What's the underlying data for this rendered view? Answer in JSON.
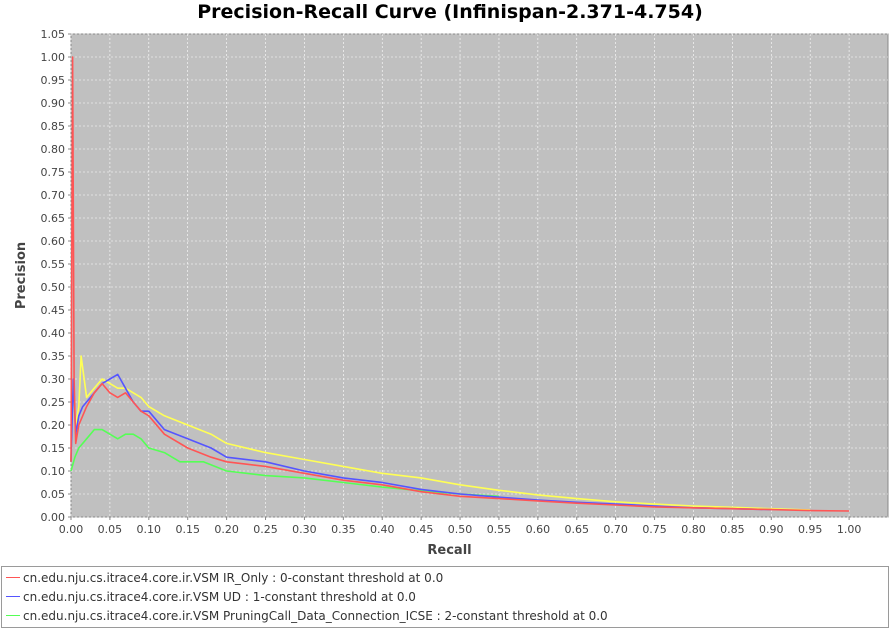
{
  "chart_data": {
    "type": "line",
    "title": "Precision-Recall Curve (Infinispan-2.371-4.754)",
    "xlabel": "Recall",
    "ylabel": "Precision",
    "xlim": [
      0,
      1.05
    ],
    "ylim": [
      0,
      1.05
    ],
    "x_ticks": [
      "0.00",
      "0.05",
      "0.10",
      "0.15",
      "0.20",
      "0.25",
      "0.30",
      "0.35",
      "0.40",
      "0.45",
      "0.50",
      "0.55",
      "0.60",
      "0.65",
      "0.70",
      "0.75",
      "0.80",
      "0.85",
      "0.90",
      "0.95",
      "1.00"
    ],
    "y_ticks": [
      "0.00",
      "0.05",
      "0.10",
      "0.15",
      "0.20",
      "0.25",
      "0.30",
      "0.35",
      "0.40",
      "0.45",
      "0.50",
      "0.55",
      "0.60",
      "0.65",
      "0.70",
      "0.75",
      "0.80",
      "0.85",
      "0.90",
      "0.95",
      "1.00",
      "1.05"
    ],
    "grid": true,
    "plot_background": "#c0c0c0",
    "legend_position": "bottom",
    "series": [
      {
        "name": "cn.edu.nju.cs.itrace4.core.ir.VSM IR_Only : 0-constant threshold at 0.0",
        "color": "#ff5555",
        "x": [
          0.0,
          0.002,
          0.004,
          0.006,
          0.01,
          0.015,
          0.02,
          0.03,
          0.04,
          0.05,
          0.06,
          0.07,
          0.08,
          0.09,
          0.1,
          0.12,
          0.15,
          0.18,
          0.2,
          0.25,
          0.3,
          0.35,
          0.4,
          0.45,
          0.5,
          0.55,
          0.6,
          0.65,
          0.7,
          0.75,
          0.8,
          0.85,
          0.9,
          0.95,
          1.0
        ],
        "y": [
          0.12,
          1.0,
          0.3,
          0.16,
          0.2,
          0.22,
          0.24,
          0.27,
          0.29,
          0.27,
          0.26,
          0.27,
          0.25,
          0.23,
          0.22,
          0.18,
          0.15,
          0.13,
          0.12,
          0.11,
          0.095,
          0.08,
          0.07,
          0.055,
          0.045,
          0.04,
          0.035,
          0.03,
          0.026,
          0.022,
          0.02,
          0.018,
          0.016,
          0.014,
          0.013
        ]
      },
      {
        "name": "cn.edu.nju.cs.itrace4.core.ir.VSM UD : 1-constant threshold at 0.0",
        "color": "#5555ff",
        "x": [
          0.0,
          0.003,
          0.006,
          0.01,
          0.015,
          0.02,
          0.03,
          0.04,
          0.05,
          0.06,
          0.07,
          0.08,
          0.09,
          0.1,
          0.12,
          0.15,
          0.18,
          0.2,
          0.25,
          0.3,
          0.35,
          0.4,
          0.45,
          0.5,
          0.55,
          0.6,
          0.65,
          0.7,
          0.75,
          0.8,
          0.85,
          0.9
        ],
        "y": [
          0.12,
          0.3,
          0.18,
          0.22,
          0.24,
          0.25,
          0.27,
          0.29,
          0.3,
          0.31,
          0.28,
          0.25,
          0.23,
          0.23,
          0.19,
          0.17,
          0.15,
          0.13,
          0.12,
          0.1,
          0.085,
          0.075,
          0.06,
          0.05,
          0.043,
          0.037,
          0.032,
          0.028,
          0.024,
          0.02,
          0.018,
          0.016
        ]
      },
      {
        "name": "cn.edu.nju.cs.itrace4.core.ir.VSM PruningCall_Data_Connection_ICSE : 2-constant threshold at 0.0",
        "color": "#55ff55",
        "x": [
          0.0,
          0.005,
          0.01,
          0.02,
          0.03,
          0.04,
          0.05,
          0.06,
          0.07,
          0.08,
          0.09,
          0.1,
          0.12,
          0.14,
          0.17,
          0.2,
          0.25,
          0.3,
          0.35,
          0.4,
          0.45,
          0.5,
          0.55
        ],
        "y": [
          0.1,
          0.13,
          0.15,
          0.17,
          0.19,
          0.19,
          0.18,
          0.17,
          0.18,
          0.18,
          0.17,
          0.15,
          0.14,
          0.12,
          0.12,
          0.1,
          0.09,
          0.085,
          0.075,
          0.065,
          0.057,
          0.05,
          0.045
        ]
      },
      {
        "name": "",
        "color": "#ffff55",
        "x": [
          0.0,
          0.003,
          0.006,
          0.01,
          0.013,
          0.02,
          0.03,
          0.04,
          0.05,
          0.06,
          0.07,
          0.08,
          0.09,
          0.1,
          0.12,
          0.15,
          0.18,
          0.2,
          0.25,
          0.3,
          0.35,
          0.4,
          0.45,
          0.5,
          0.55,
          0.6,
          0.65,
          0.7,
          0.75,
          0.8,
          0.85,
          0.9,
          0.95
        ],
        "y": [
          0.12,
          0.3,
          0.2,
          0.24,
          0.35,
          0.26,
          0.28,
          0.3,
          0.29,
          0.28,
          0.28,
          0.27,
          0.26,
          0.24,
          0.22,
          0.2,
          0.18,
          0.16,
          0.14,
          0.125,
          0.11,
          0.095,
          0.085,
          0.07,
          0.058,
          0.048,
          0.04,
          0.033,
          0.028,
          0.024,
          0.021,
          0.018,
          0.015
        ]
      }
    ]
  }
}
